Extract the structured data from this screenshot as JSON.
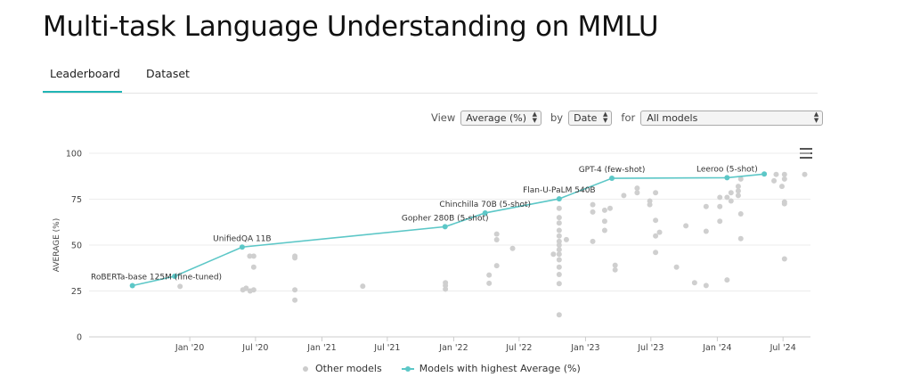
{
  "page": {
    "title": "Multi-task Language Understanding on MMLU",
    "tabs": [
      {
        "label": "Leaderboard",
        "active": true
      },
      {
        "label": "Dataset",
        "active": false
      }
    ]
  },
  "controls": {
    "view_label": "View",
    "view_value": "Average (%)",
    "by_label": "by",
    "by_value": "Date",
    "for_label": "for",
    "for_value": "All models"
  },
  "legend": {
    "other": "Other models",
    "best": "Models with highest Average (%)"
  },
  "icons": {
    "menu": "hamburger-menu-icon"
  },
  "colors": {
    "accent": "#21b5b5",
    "best_line": "#5cc7c7",
    "other_points": "#cccccc"
  },
  "chart_data": {
    "type": "scatter",
    "xlabel": "",
    "ylabel": "AVERAGE (%)",
    "x_type": "date",
    "xlim": [
      "2019-03-28",
      "2024-09-15"
    ],
    "ylim": [
      0,
      100
    ],
    "y_ticks": [
      0,
      25,
      50,
      75,
      100
    ],
    "x_ticks": [
      {
        "label": "Jan '20",
        "x": "2020-01-01"
      },
      {
        "label": "Jul '20",
        "x": "2020-07-01"
      },
      {
        "label": "Jan '21",
        "x": "2021-01-01"
      },
      {
        "label": "Jul '21",
        "x": "2021-07-01"
      },
      {
        "label": "Jan '22",
        "x": "2022-01-01"
      },
      {
        "label": "Jul '22",
        "x": "2022-07-01"
      },
      {
        "label": "Jan '23",
        "x": "2023-01-01"
      },
      {
        "label": "Jul '23",
        "x": "2023-07-01"
      },
      {
        "label": "Jan '24",
        "x": "2024-01-01"
      },
      {
        "label": "Jul '24",
        "x": "2024-07-01"
      }
    ],
    "grid": "horizontal",
    "series": [
      {
        "name": "Models with highest Average (%)",
        "mode": "line+markers",
        "points": [
          {
            "x": "2019-07-26",
            "y": 27.9,
            "label": "RoBERTa-base 125M (fine-tuned)"
          },
          {
            "x": "2019-11-20",
            "y": 33.0
          },
          {
            "x": "2020-05-25",
            "y": 48.9,
            "label": "UnifiedQA 11B"
          },
          {
            "x": "2021-12-08",
            "y": 60.0,
            "label": "Gopher 280B (5-shot)"
          },
          {
            "x": "2022-03-29",
            "y": 67.5,
            "label": "Chinchilla 70B (5-shot)"
          },
          {
            "x": "2022-10-20",
            "y": 75.2,
            "label": "Flan-U-PaLM 540B"
          },
          {
            "x": "2023-03-15",
            "y": 86.4,
            "label": "GPT-4 (few-shot)"
          },
          {
            "x": "2024-01-28",
            "y": 86.7,
            "label": "Leeroo (5-shot)"
          },
          {
            "x": "2024-05-10",
            "y": 88.7
          }
        ]
      },
      {
        "name": "Other models",
        "mode": "markers",
        "points": [
          {
            "x": "2019-12-05",
            "y": 27.5
          },
          {
            "x": "2020-05-27",
            "y": 25.6
          },
          {
            "x": "2020-06-05",
            "y": 26.5
          },
          {
            "x": "2020-06-16",
            "y": 25.0
          },
          {
            "x": "2020-06-15",
            "y": 44.0
          },
          {
            "x": "2020-06-26",
            "y": 44.0
          },
          {
            "x": "2020-06-26",
            "y": 38.0
          },
          {
            "x": "2020-06-26",
            "y": 25.6
          },
          {
            "x": "2020-10-18",
            "y": 44.0
          },
          {
            "x": "2020-10-18",
            "y": 43.0
          },
          {
            "x": "2020-10-18",
            "y": 25.6
          },
          {
            "x": "2020-10-18",
            "y": 20.0
          },
          {
            "x": "2021-04-24",
            "y": 27.6
          },
          {
            "x": "2021-12-09",
            "y": 29.5
          },
          {
            "x": "2021-12-09",
            "y": 27.9
          },
          {
            "x": "2021-12-09",
            "y": 26.0
          },
          {
            "x": "2022-04-09",
            "y": 33.7
          },
          {
            "x": "2022-04-09",
            "y": 29.2
          },
          {
            "x": "2022-04-30",
            "y": 38.8
          },
          {
            "x": "2022-04-30",
            "y": 52.9
          },
          {
            "x": "2022-04-30",
            "y": 56.0
          },
          {
            "x": "2022-06-13",
            "y": 48.2
          },
          {
            "x": "2022-10-04",
            "y": 45.0
          },
          {
            "x": "2022-10-20",
            "y": 70.0
          },
          {
            "x": "2022-10-20",
            "y": 65.0
          },
          {
            "x": "2022-10-20",
            "y": 62.0
          },
          {
            "x": "2022-10-20",
            "y": 58.0
          },
          {
            "x": "2022-10-20",
            "y": 55.0
          },
          {
            "x": "2022-10-20",
            "y": 52.0
          },
          {
            "x": "2022-10-20",
            "y": 50.0
          },
          {
            "x": "2022-10-20",
            "y": 47.5
          },
          {
            "x": "2022-10-20",
            "y": 45.0
          },
          {
            "x": "2022-10-20",
            "y": 42.0
          },
          {
            "x": "2022-10-20",
            "y": 38.0
          },
          {
            "x": "2022-10-20",
            "y": 34.0
          },
          {
            "x": "2022-10-20",
            "y": 29.0
          },
          {
            "x": "2022-10-20",
            "y": 12.0
          },
          {
            "x": "2022-11-09",
            "y": 53.0
          },
          {
            "x": "2023-01-21",
            "y": 72.0
          },
          {
            "x": "2023-01-21",
            "y": 68.0
          },
          {
            "x": "2023-01-21",
            "y": 52.0
          },
          {
            "x": "2023-02-23",
            "y": 69.0
          },
          {
            "x": "2023-02-23",
            "y": 63.0
          },
          {
            "x": "2023-02-23",
            "y": 58.0
          },
          {
            "x": "2023-03-10",
            "y": 70.0
          },
          {
            "x": "2023-03-24",
            "y": 39.0
          },
          {
            "x": "2023-03-24",
            "y": 36.5
          },
          {
            "x": "2023-04-17",
            "y": 77.0
          },
          {
            "x": "2023-05-24",
            "y": 81.0
          },
          {
            "x": "2023-05-24",
            "y": 78.5
          },
          {
            "x": "2023-06-28",
            "y": 74.0
          },
          {
            "x": "2023-06-28",
            "y": 72.0
          },
          {
            "x": "2023-07-14",
            "y": 78.5
          },
          {
            "x": "2023-07-14",
            "y": 63.5
          },
          {
            "x": "2023-07-14",
            "y": 55.0
          },
          {
            "x": "2023-07-14",
            "y": 46.0
          },
          {
            "x": "2023-07-25",
            "y": 57.0
          },
          {
            "x": "2023-09-10",
            "y": 38.0
          },
          {
            "x": "2023-10-06",
            "y": 60.5
          },
          {
            "x": "2023-10-30",
            "y": 29.5
          },
          {
            "x": "2023-12-01",
            "y": 71.0
          },
          {
            "x": "2023-12-01",
            "y": 57.5
          },
          {
            "x": "2023-12-01",
            "y": 28.0
          },
          {
            "x": "2024-01-08",
            "y": 76.0
          },
          {
            "x": "2024-01-08",
            "y": 71.0
          },
          {
            "x": "2024-01-08",
            "y": 63.0
          },
          {
            "x": "2024-01-28",
            "y": 76.0
          },
          {
            "x": "2024-01-28",
            "y": 31.0
          },
          {
            "x": "2024-02-08",
            "y": 78.5
          },
          {
            "x": "2024-02-08",
            "y": 74.0
          },
          {
            "x": "2024-02-28",
            "y": 82.0
          },
          {
            "x": "2024-02-28",
            "y": 79.5
          },
          {
            "x": "2024-02-28",
            "y": 77.0
          },
          {
            "x": "2024-03-06",
            "y": 86.0
          },
          {
            "x": "2024-03-06",
            "y": 67.0
          },
          {
            "x": "2024-03-06",
            "y": 53.5
          },
          {
            "x": "2024-06-06",
            "y": 85.0
          },
          {
            "x": "2024-06-12",
            "y": 88.5
          },
          {
            "x": "2024-06-28",
            "y": 82.0
          },
          {
            "x": "2024-07-05",
            "y": 88.5
          },
          {
            "x": "2024-07-05",
            "y": 86.0
          },
          {
            "x": "2024-07-05",
            "y": 73.5
          },
          {
            "x": "2024-07-05",
            "y": 72.5
          },
          {
            "x": "2024-07-05",
            "y": 42.5
          },
          {
            "x": "2024-08-30",
            "y": 88.5
          }
        ]
      }
    ]
  }
}
